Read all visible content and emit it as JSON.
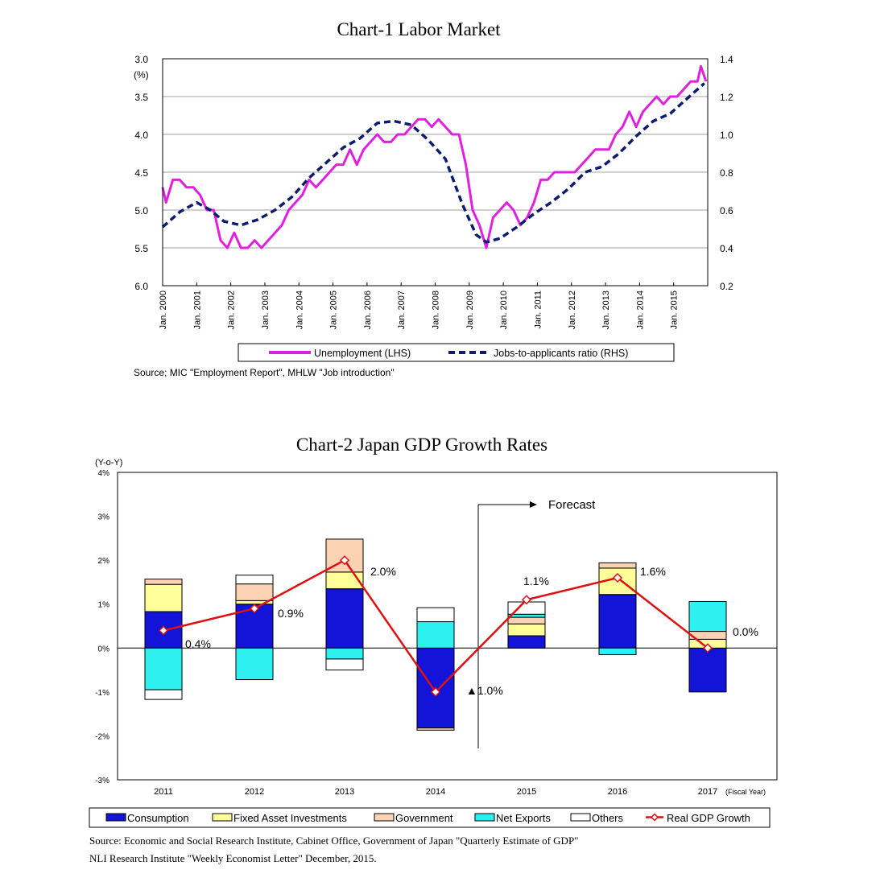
{
  "chart_data": [
    {
      "type": "line",
      "title": "Chart-1 Labor Market",
      "left_axis": {
        "unit_label": "(%)",
        "range": [
          3.0,
          6.0
        ],
        "inverted": true,
        "ticks": [
          "3.0",
          "3.5",
          "4.0",
          "4.5",
          "5.0",
          "5.5",
          "6.0"
        ]
      },
      "right_axis": {
        "range": [
          0.2,
          1.4
        ],
        "ticks": [
          "1.4",
          "1.2",
          "1.0",
          "0.8",
          "0.6",
          "0.4",
          "0.2"
        ]
      },
      "x_ticks": [
        "Jan. 2000",
        "Jan. 2001",
        "Jan. 2002",
        "Jan. 2003",
        "Jan. 2004",
        "Jan. 2005",
        "Jan. 2006",
        "Jan. 2007",
        "Jan. 2008",
        "Jan. 2009",
        "Jan. 2010",
        "Jan. 2011",
        "Jan. 2012",
        "Jan. 2013",
        "Jan. 2014",
        "Jan. 2015"
      ],
      "grid": true,
      "legend_position": "bottom",
      "source": "Source; MIC \"Employment Report\", MHLW \"Job introduction\"",
      "colors": {
        "unemployment": "#e020e0",
        "jobs_ratio": "#0d1c6e"
      },
      "series": [
        {
          "name": "Unemployment (LHS)",
          "axis": "left",
          "x": [
            2000.0,
            2000.1,
            2000.3,
            2000.5,
            2000.7,
            2000.9,
            2001.1,
            2001.3,
            2001.5,
            2001.7,
            2001.9,
            2002.1,
            2002.3,
            2002.5,
            2002.7,
            2002.9,
            2003.1,
            2003.3,
            2003.5,
            2003.7,
            2003.9,
            2004.1,
            2004.3,
            2004.5,
            2004.7,
            2004.9,
            2005.1,
            2005.3,
            2005.5,
            2005.7,
            2005.9,
            2006.1,
            2006.3,
            2006.5,
            2006.7,
            2006.9,
            2007.1,
            2007.3,
            2007.5,
            2007.7,
            2007.9,
            2008.1,
            2008.3,
            2008.5,
            2008.7,
            2008.9,
            2009.1,
            2009.3,
            2009.5,
            2009.7,
            2009.9,
            2010.1,
            2010.3,
            2010.5,
            2010.7,
            2010.9,
            2011.1,
            2011.3,
            2011.5,
            2011.7,
            2011.9,
            2012.1,
            2012.3,
            2012.5,
            2012.7,
            2012.9,
            2013.1,
            2013.3,
            2013.5,
            2013.7,
            2013.9,
            2014.1,
            2014.3,
            2014.5,
            2014.7,
            2014.9,
            2015.1,
            2015.3,
            2015.5,
            2015.7,
            2015.8,
            2015.95
          ],
          "values": [
            4.7,
            4.9,
            4.6,
            4.6,
            4.7,
            4.7,
            4.8,
            5.0,
            5.0,
            5.4,
            5.5,
            5.3,
            5.5,
            5.5,
            5.4,
            5.5,
            5.4,
            5.3,
            5.2,
            5.0,
            4.9,
            4.8,
            4.6,
            4.7,
            4.6,
            4.5,
            4.4,
            4.4,
            4.2,
            4.4,
            4.2,
            4.1,
            4.0,
            4.1,
            4.1,
            4.0,
            4.0,
            3.9,
            3.8,
            3.8,
            3.9,
            3.8,
            3.9,
            4.0,
            4.0,
            4.4,
            5.0,
            5.2,
            5.5,
            5.1,
            5.0,
            4.9,
            5.0,
            5.2,
            5.1,
            4.9,
            4.6,
            4.6,
            4.5,
            4.5,
            4.5,
            4.5,
            4.4,
            4.3,
            4.2,
            4.2,
            4.2,
            4.0,
            3.9,
            3.7,
            3.9,
            3.7,
            3.6,
            3.5,
            3.6,
            3.5,
            3.5,
            3.4,
            3.3,
            3.3,
            3.1,
            3.3
          ]
        },
        {
          "name": "Jobs-to-applicants ratio (RHS)",
          "axis": "right",
          "x": [
            2000.0,
            2000.5,
            2001.0,
            2001.4,
            2001.8,
            2002.3,
            2002.8,
            2003.3,
            2003.8,
            2004.3,
            2004.8,
            2005.3,
            2005.8,
            2006.3,
            2006.8,
            2007.3,
            2007.8,
            2008.3,
            2008.8,
            2009.2,
            2009.5,
            2009.9,
            2010.4,
            2010.9,
            2011.4,
            2011.9,
            2012.4,
            2012.9,
            2013.4,
            2013.9,
            2014.4,
            2014.9,
            2015.4,
            2015.9
          ],
          "values": [
            0.51,
            0.59,
            0.64,
            0.6,
            0.54,
            0.52,
            0.55,
            0.6,
            0.67,
            0.77,
            0.85,
            0.93,
            0.98,
            1.06,
            1.07,
            1.05,
            0.97,
            0.87,
            0.63,
            0.47,
            0.43,
            0.45,
            0.51,
            0.58,
            0.64,
            0.71,
            0.8,
            0.83,
            0.9,
            0.99,
            1.07,
            1.11,
            1.19,
            1.27
          ]
        }
      ]
    },
    {
      "type": "bar",
      "title": "Chart-2 Japan GDP Growth Rates",
      "y_unit_label": "(Y-o-Y)",
      "x_suffix": "(Fiscal Year)",
      "ylim": [
        -3,
        4
      ],
      "y_ticks": [
        "4%",
        "3%",
        "2%",
        "1%",
        "0%",
        "-1%",
        "-2%",
        "-3%"
      ],
      "categories": [
        "2011",
        "2012",
        "2013",
        "2014",
        "2015",
        "2016",
        "2017"
      ],
      "legend_position": "bottom",
      "forecast_label": "Forecast",
      "growth_labels": [
        "0.4%",
        "0.9%",
        "2.0%",
        "▲1.0%",
        "1.1%",
        "1.6%",
        "0.0%"
      ],
      "source_lines": [
        "Source: Economic and Social Research Institute, Cabinet Office, Government of Japan \"Quarterly Estimate of GDP\"",
        "NLI Research Institute \"Weekly Economist Letter\" December, 2015."
      ],
      "series": [
        {
          "name": "Consumption",
          "color": "#1414d8",
          "values": [
            0.83,
            1.0,
            1.35,
            -1.82,
            0.28,
            1.22,
            -1.0
          ]
        },
        {
          "name": "Fixed Asset Investments",
          "color": "#ffff99",
          "values": [
            0.62,
            0.08,
            0.38,
            0.0,
            0.27,
            0.6,
            0.2
          ]
        },
        {
          "name": "Government",
          "color": "#fcd2b4",
          "values": [
            0.12,
            0.38,
            0.75,
            -0.05,
            0.15,
            0.12,
            0.18
          ]
        },
        {
          "name": "Net Exports",
          "color": "#2ef0f0",
          "values": [
            -0.95,
            -0.72,
            -0.25,
            0.6,
            0.07,
            -0.15,
            0.68
          ]
        },
        {
          "name": "Others",
          "color": "#ffffff",
          "values": [
            -0.22,
            0.2,
            -0.25,
            0.32,
            0.28,
            0.0,
            0.0
          ]
        },
        {
          "name": "Real GDP Growth",
          "color": "#dd1111",
          "values": [
            0.4,
            0.9,
            2.0,
            -1.0,
            1.1,
            1.6,
            0.0
          ]
        }
      ]
    }
  ]
}
